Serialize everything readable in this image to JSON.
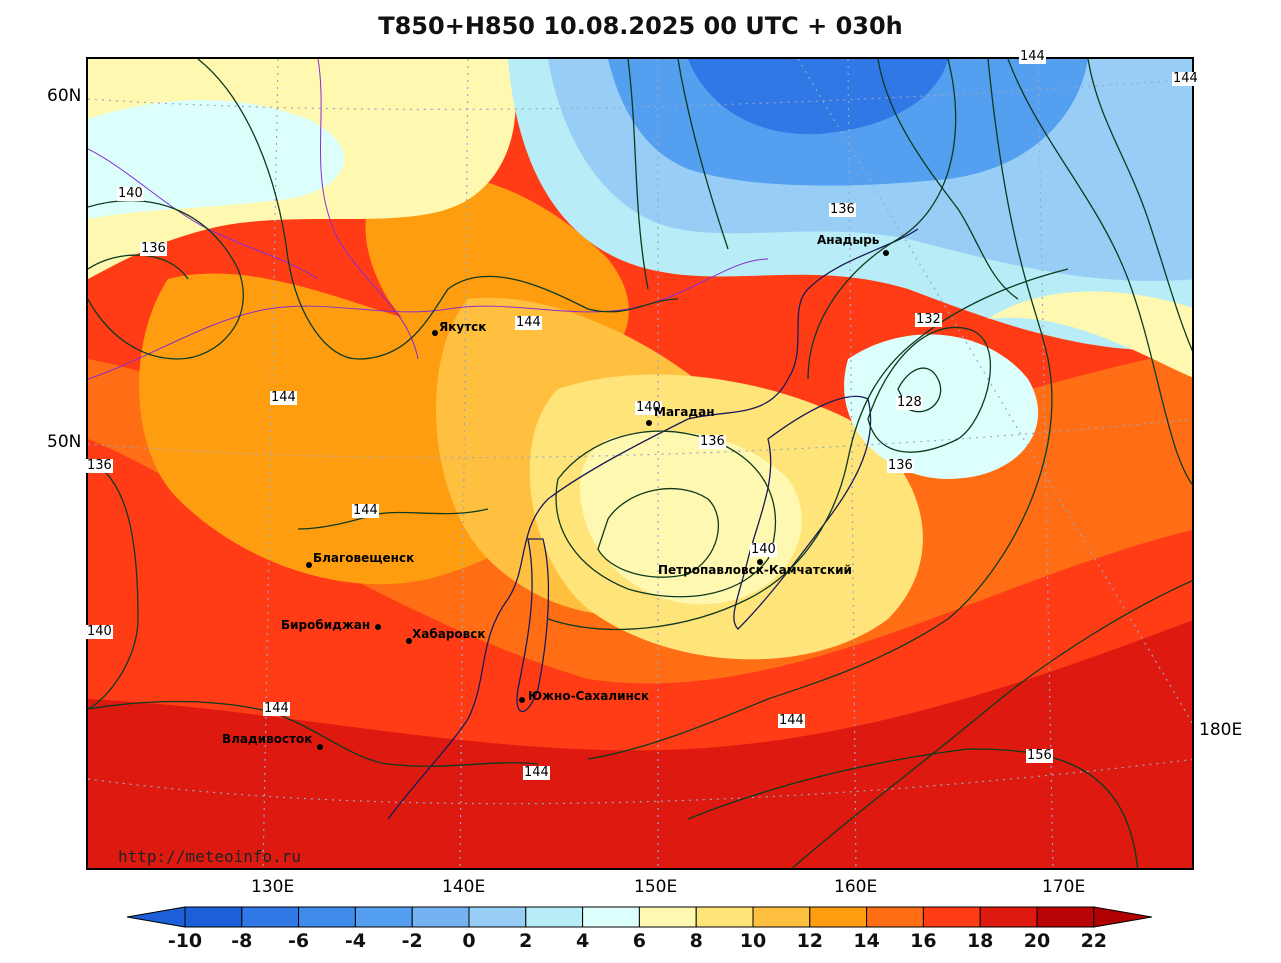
{
  "title": "T850+H850 10.08.2025 00 UTC + 030h",
  "watermark": "http://meteoinfo.ru",
  "lat_labels": [
    "60N",
    "50N"
  ],
  "lon_labels": [
    "130E",
    "140E",
    "150E",
    "160E",
    "170E",
    "180E"
  ],
  "colorbar": {
    "labels": [
      "-10",
      "-8",
      "-6",
      "-4",
      "-2",
      "0",
      "2",
      "4",
      "6",
      "8",
      "10",
      "12",
      "14",
      "16",
      "18",
      "20",
      "22"
    ],
    "colors": [
      "#1c5fd8",
      "#2f78e6",
      "#3f8cec",
      "#559ff0",
      "#74b3f2",
      "#98cef6",
      "#b8ecf6",
      "#ddfffc",
      "#fff8b0",
      "#ffe47a",
      "#ffc040",
      "#ff9d10",
      "#ff6e14",
      "#ff3c16",
      "#de1a10",
      "#b80404"
    ],
    "low_color": "#1c5fd8",
    "high_color": "#b00000"
  },
  "cities": [
    {
      "name": "Якутск"
    },
    {
      "name": "Магадан"
    },
    {
      "name": "Анадырь"
    },
    {
      "name": "Благовещенск"
    },
    {
      "name": "Биробиджан"
    },
    {
      "name": "Хабаровск"
    },
    {
      "name": "Петропавловск-Камчатский"
    },
    {
      "name": "Южно-Сахалинск"
    },
    {
      "name": "Владивосток"
    }
  ],
  "isohypse_labels": [
    "140",
    "136",
    "144",
    "136",
    "144",
    "140",
    "144",
    "144",
    "144",
    "140",
    "136",
    "140",
    "144",
    "156",
    "136",
    "132",
    "128",
    "136",
    "144",
    "144"
  ]
}
